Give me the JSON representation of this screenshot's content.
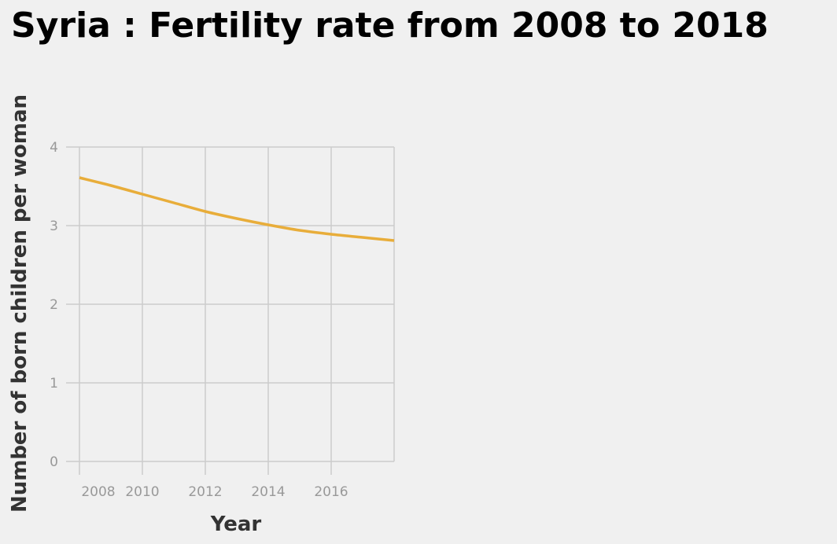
{
  "chart_data": {
    "type": "line",
    "title": "Syria : Fertility rate from 2008 to 2018",
    "xlabel": "Year",
    "ylabel": "Number of born children per woman",
    "xlim": [
      2008,
      2018
    ],
    "ylim": [
      0,
      4
    ],
    "x_ticks": [
      2008,
      2010,
      2012,
      2014,
      2016
    ],
    "y_ticks": [
      0,
      1,
      2,
      3,
      4
    ],
    "grid": true,
    "line_color": "#e8ad3a",
    "grid_color": "#cccccc",
    "series": [
      {
        "x": [
          2008,
          2009,
          2010,
          2011,
          2012,
          2013,
          2014,
          2015,
          2016,
          2017,
          2018
        ],
        "values": [
          3.61,
          3.51,
          3.4,
          3.29,
          3.18,
          3.09,
          3.01,
          2.94,
          2.89,
          2.85,
          2.81
        ]
      }
    ]
  }
}
